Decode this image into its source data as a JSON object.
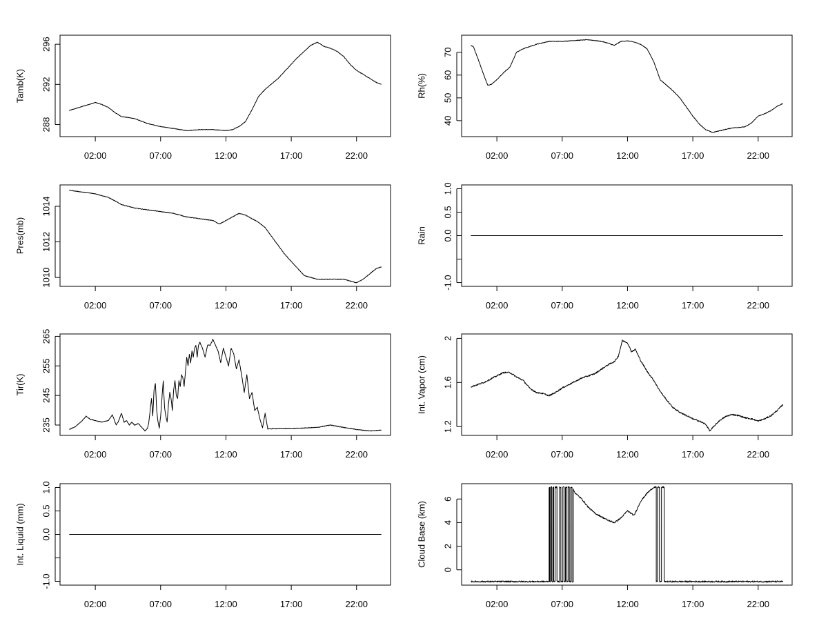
{
  "chart_data": [
    {
      "type": "line",
      "ylabel": "Tamb(K)",
      "xlabel": "",
      "x_ticks": [
        "02:00",
        "07:00",
        "12:00",
        "17:00",
        "22:00"
      ],
      "y_ticks": [
        288,
        292,
        296
      ],
      "ylim": [
        286.8,
        296.9
      ],
      "noise": 0.05,
      "series": [
        {
          "x": [
            0.0,
            0.5,
            1.0,
            1.5,
            2.0,
            2.5,
            3.0,
            3.5,
            4.0,
            5.0,
            6.0,
            7.0,
            8.0,
            9.0,
            10.0,
            11.0,
            12.0,
            12.5,
            13.0,
            13.5,
            14.0,
            14.5,
            15.0,
            16.0,
            16.5,
            17.0,
            17.5,
            18.0,
            18.5,
            19.0,
            19.5,
            20.0,
            20.5,
            21.0,
            21.5,
            22.0,
            22.5,
            23.0,
            23.5,
            23.9
          ],
          "y": [
            289.4,
            289.6,
            289.8,
            290.0,
            290.2,
            290.0,
            289.7,
            289.2,
            288.8,
            288.6,
            288.1,
            287.8,
            287.6,
            287.4,
            287.5,
            287.5,
            287.4,
            287.5,
            287.8,
            288.3,
            289.5,
            290.8,
            291.5,
            292.6,
            293.3,
            294.0,
            294.7,
            295.3,
            295.9,
            296.2,
            295.8,
            295.6,
            295.3,
            294.8,
            294.0,
            293.4,
            293.0,
            292.6,
            292.2,
            292.0
          ]
        }
      ]
    },
    {
      "type": "line",
      "ylabel": "Rh(%)",
      "xlabel": "",
      "x_ticks": [
        "02:00",
        "07:00",
        "12:00",
        "17:00",
        "22:00"
      ],
      "y_ticks": [
        40,
        50,
        60,
        70
      ],
      "ylim": [
        33,
        77.5
      ],
      "noise": 0.25,
      "series": [
        {
          "x": [
            0.0,
            0.2,
            0.5,
            1.0,
            1.3,
            1.6,
            2.0,
            2.5,
            3.0,
            3.5,
            4.0,
            5.0,
            6.0,
            7.0,
            8.0,
            9.0,
            10.0,
            10.5,
            11.0,
            11.5,
            12.0,
            12.5,
            13.0,
            13.5,
            14.0,
            14.5,
            15.0,
            15.5,
            16.0,
            16.5,
            17.0,
            17.5,
            18.0,
            18.5,
            19.0,
            20.0,
            21.0,
            21.5,
            22.0,
            22.5,
            23.0,
            23.5,
            23.9
          ],
          "y": [
            73,
            72.5,
            68,
            60,
            55.5,
            56,
            58,
            61,
            63.5,
            70,
            71.5,
            73.5,
            74.8,
            74.8,
            75.2,
            75.5,
            74.8,
            74.0,
            73.0,
            74.8,
            75.0,
            74.5,
            73.5,
            71.5,
            66.0,
            58.0,
            55.5,
            53.0,
            50.0,
            46.0,
            42.0,
            38.5,
            36.0,
            34.8,
            35.5,
            36.8,
            37.3,
            39.0,
            42.0,
            43.0,
            44.5,
            46.5,
            47.5
          ]
        }
      ]
    },
    {
      "type": "line",
      "ylabel": "Pres(mb)",
      "xlabel": "",
      "x_ticks": [
        "02:00",
        "07:00",
        "12:00",
        "17:00",
        "22:00"
      ],
      "y_ticks": [
        1010,
        1012,
        1014
      ],
      "ylim": [
        1009.5,
        1015.2
      ],
      "noise": 0.03,
      "series": [
        {
          "x": [
            0.0,
            1.0,
            2.0,
            3.0,
            3.5,
            4.0,
            5.0,
            6.0,
            7.0,
            8.0,
            9.0,
            10.0,
            11.0,
            11.5,
            12.0,
            12.5,
            13.0,
            13.5,
            14.0,
            14.5,
            15.0,
            15.5,
            16.0,
            16.5,
            17.0,
            17.5,
            18.0,
            18.5,
            19.0,
            20.0,
            21.0,
            22.0,
            22.5,
            23.0,
            23.5,
            23.9
          ],
          "y": [
            1014.9,
            1014.8,
            1014.7,
            1014.5,
            1014.3,
            1014.1,
            1013.9,
            1013.8,
            1013.7,
            1013.6,
            1013.4,
            1013.3,
            1013.2,
            1013.0,
            1013.2,
            1013.4,
            1013.6,
            1013.5,
            1013.3,
            1013.1,
            1012.8,
            1012.3,
            1011.8,
            1011.3,
            1010.9,
            1010.5,
            1010.1,
            1010.0,
            1009.9,
            1009.9,
            1009.9,
            1009.7,
            1009.9,
            1010.2,
            1010.5,
            1010.6
          ]
        }
      ]
    },
    {
      "type": "line",
      "ylabel": "Rain",
      "xlabel": "",
      "x_ticks": [
        "02:00",
        "07:00",
        "12:00",
        "17:00",
        "22:00"
      ],
      "y_ticks": [
        -1.0,
        -0.5,
        0.0,
        0.5,
        1.0
      ],
      "y_tick_labels": [
        "-1.0",
        "",
        "0.0",
        "0.5",
        "1.0"
      ],
      "ylim": [
        -1.08,
        1.08
      ],
      "noise": 0,
      "series": [
        {
          "x": [
            0.0,
            23.9
          ],
          "y": [
            0,
            0
          ]
        }
      ]
    },
    {
      "type": "line",
      "ylabel": "Tir(K)",
      "xlabel": "",
      "x_ticks": [
        "02:00",
        "07:00",
        "12:00",
        "17:00",
        "22:00"
      ],
      "y_ticks": [
        235,
        245,
        255,
        265
      ],
      "ylim": [
        231.5,
        265.8
      ],
      "noise": 0.2,
      "series": [
        {
          "x": [
            0.0,
            0.5,
            1.0,
            1.3,
            1.6,
            2.0,
            2.5,
            3.0,
            3.3,
            3.6,
            3.8,
            4.0,
            4.2,
            4.4,
            4.6,
            4.8,
            5.0,
            5.3,
            5.6,
            5.8,
            6.0,
            6.1,
            6.2,
            6.3,
            6.4,
            6.5,
            6.6,
            6.7,
            6.8,
            6.9,
            7.0,
            7.1,
            7.2,
            7.3,
            7.4,
            7.5,
            7.6,
            7.7,
            7.8,
            7.9,
            8.0,
            8.1,
            8.2,
            8.3,
            8.4,
            8.5,
            8.6,
            8.7,
            8.8,
            8.9,
            9.0,
            9.1,
            9.2,
            9.3,
            9.4,
            9.5,
            9.6,
            9.7,
            9.8,
            9.9,
            10.0,
            10.2,
            10.4,
            10.6,
            10.8,
            11.0,
            11.2,
            11.4,
            11.6,
            11.8,
            12.0,
            12.2,
            12.4,
            12.6,
            12.8,
            13.0,
            13.2,
            13.4,
            13.6,
            13.8,
            14.0,
            14.2,
            14.4,
            14.6,
            14.8,
            15.0,
            15.2,
            16.0,
            17.0,
            18.0,
            19.0,
            19.5,
            20.0,
            21.0,
            22.0,
            23.0,
            23.9
          ],
          "y": [
            233.5,
            234.5,
            236.5,
            238.0,
            237.0,
            236.5,
            236.0,
            236.5,
            238.5,
            235.0,
            236.5,
            239.0,
            236.0,
            236.5,
            235.0,
            236.0,
            235.0,
            235.5,
            234.0,
            233.0,
            234.0,
            236.0,
            240.0,
            244.0,
            238.0,
            247.0,
            249.0,
            240.0,
            236.0,
            234.0,
            238.0,
            244.0,
            250.0,
            241.0,
            238.0,
            236.0,
            242.0,
            246.0,
            244.0,
            240.0,
            247.0,
            250.0,
            245.0,
            244.0,
            250.0,
            248.0,
            252.0,
            251.0,
            248.0,
            253.0,
            258.0,
            255.0,
            259.0,
            256.0,
            260.0,
            258.0,
            261.0,
            262.0,
            258.0,
            262.0,
            263.0,
            261.0,
            258.0,
            262.0,
            262.0,
            264.0,
            262.0,
            260.0,
            256.0,
            261.0,
            258.0,
            255.0,
            261.0,
            259.0,
            254.0,
            257.0,
            252.0,
            246.0,
            252.0,
            244.0,
            246.0,
            240.0,
            241.0,
            237.0,
            234.0,
            239.0,
            233.7,
            233.8,
            233.8,
            234.0,
            234.2,
            234.6,
            235.0,
            234.2,
            233.5,
            233.0,
            233.3
          ]
        }
      ]
    },
    {
      "type": "line",
      "ylabel": "Int. Vapor (cm)",
      "xlabel": "",
      "x_ticks": [
        "02:00",
        "07:00",
        "12:00",
        "17:00",
        "22:00"
      ],
      "y_ticks": [
        1.2,
        1.6,
        2.0
      ],
      "ylim": [
        1.12,
        2.04
      ],
      "noise": 0.012,
      "series": [
        {
          "x": [
            0.0,
            0.5,
            1.0,
            1.5,
            2.0,
            2.5,
            3.0,
            3.5,
            4.0,
            4.5,
            5.0,
            5.5,
            6.0,
            6.5,
            7.0,
            7.5,
            8.0,
            8.5,
            9.0,
            9.5,
            10.0,
            10.5,
            11.0,
            11.3,
            11.6,
            12.0,
            12.3,
            12.6,
            13.0,
            13.5,
            14.0,
            14.5,
            15.0,
            15.5,
            16.0,
            16.5,
            17.0,
            17.5,
            18.0,
            18.3,
            18.6,
            19.0,
            19.5,
            20.0,
            20.5,
            21.0,
            21.5,
            22.0,
            22.5,
            23.0,
            23.5,
            23.9
          ],
          "y": [
            1.56,
            1.58,
            1.6,
            1.63,
            1.66,
            1.69,
            1.69,
            1.65,
            1.62,
            1.55,
            1.51,
            1.5,
            1.48,
            1.51,
            1.55,
            1.58,
            1.61,
            1.64,
            1.66,
            1.68,
            1.72,
            1.76,
            1.79,
            1.84,
            1.98,
            1.96,
            1.88,
            1.9,
            1.8,
            1.7,
            1.62,
            1.52,
            1.44,
            1.37,
            1.33,
            1.3,
            1.27,
            1.25,
            1.22,
            1.16,
            1.2,
            1.25,
            1.29,
            1.31,
            1.3,
            1.28,
            1.27,
            1.25,
            1.27,
            1.3,
            1.35,
            1.4
          ]
        }
      ]
    },
    {
      "type": "line",
      "ylabel": "Int. Liquid (mm)",
      "xlabel": "",
      "x_ticks": [
        "02:00",
        "07:00",
        "12:00",
        "17:00",
        "22:00"
      ],
      "y_ticks": [
        -1.0,
        -0.5,
        0.0,
        0.5,
        1.0
      ],
      "y_tick_labels": [
        "-1.0",
        "",
        "0.0",
        "0.5",
        "1.0"
      ],
      "ylim": [
        -1.08,
        1.08
      ],
      "noise": 0,
      "series": [
        {
          "x": [
            0.0,
            23.9
          ],
          "y": [
            0,
            0
          ]
        }
      ]
    },
    {
      "type": "line",
      "ylabel": "Cloud Base (km)",
      "xlabel": "",
      "x_ticks": [
        "02:00",
        "07:00",
        "12:00",
        "17:00",
        "22:00"
      ],
      "y_ticks": [
        0,
        2,
        4,
        6
      ],
      "ylim": [
        -1.3,
        7.3
      ],
      "noise": 0.12,
      "series": [
        {
          "x": [
            0.0,
            6.0,
            6.0,
            6.05,
            6.05,
            6.12,
            6.12,
            6.2,
            6.2,
            6.28,
            6.28,
            6.35,
            6.35,
            6.45,
            6.45,
            6.6,
            6.6,
            6.8,
            6.8,
            6.9,
            6.9,
            7.05,
            7.05,
            7.15,
            7.15,
            7.25,
            7.25,
            7.35,
            7.35,
            7.45,
            7.45,
            7.55,
            7.55,
            7.65,
            7.65,
            7.75,
            7.75,
            7.85,
            7.85,
            8.0,
            8.5,
            9.0,
            9.5,
            10.0,
            10.5,
            11.0,
            11.5,
            12.0,
            12.5,
            13.0,
            13.5,
            14.0,
            14.2,
            14.2,
            14.3,
            14.3,
            14.45,
            14.45,
            14.6,
            14.6,
            14.8,
            14.8,
            23.9
          ],
          "y": [
            -1.0,
            -1.0,
            7.0,
            7.0,
            -1.0,
            -1.0,
            7.0,
            7.0,
            -1.0,
            -1.0,
            7.0,
            7.0,
            -1.0,
            -1.0,
            7.0,
            7.0,
            -1.0,
            -1.0,
            7.0,
            7.0,
            -1.0,
            -1.0,
            7.0,
            7.0,
            -1.0,
            -1.0,
            7.0,
            7.0,
            -1.0,
            -1.0,
            7.0,
            7.0,
            -1.0,
            -1.0,
            7.0,
            7.0,
            -1.0,
            -1.0,
            6.8,
            6.5,
            6.0,
            5.3,
            4.8,
            4.5,
            4.2,
            4.0,
            4.4,
            5.0,
            4.6,
            5.8,
            6.5,
            7.0,
            7.0,
            -1.0,
            -1.0,
            7.0,
            7.0,
            -1.0,
            -1.0,
            7.0,
            7.0,
            -1.0,
            -1.0
          ]
        }
      ]
    }
  ]
}
